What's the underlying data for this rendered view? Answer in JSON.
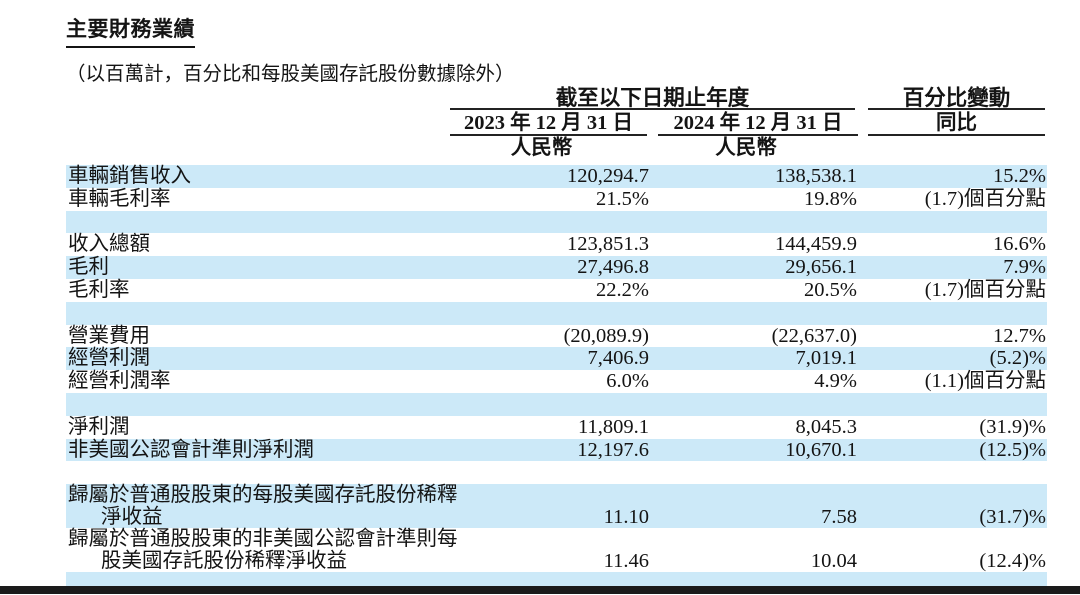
{
  "page": {
    "title": "主要財務業績",
    "subtitle": "（以百萬計，百分比和每股美國存託股份數據除外）"
  },
  "table": {
    "header": {
      "period_group": "截至以下日期止年度",
      "pct_group": "百分比變動",
      "date_2023": "2023 年 12 月 31 日",
      "date_2024": "2024 年 12 月 31 日",
      "yoy_label": "同比",
      "currency_left": "人民幣",
      "currency_right": "人民幣"
    },
    "rows": [
      {
        "label": "車輛銷售收入",
        "v2023": "120,294.7",
        "v2024": "138,538.1",
        "yoy": "15.2%",
        "shade": true
      },
      {
        "label": "車輛毛利率",
        "v2023": "21.5%",
        "v2024": "19.8%",
        "yoy": "(1.7)個百分點",
        "shade": false
      },
      {
        "label": "",
        "v2023": "",
        "v2024": "",
        "yoy": "",
        "shade": true,
        "spacer": true
      },
      {
        "label": "收入總額",
        "v2023": "123,851.3",
        "v2024": "144,459.9",
        "yoy": "16.6%",
        "shade": false
      },
      {
        "label": "毛利",
        "v2023": "27,496.8",
        "v2024": "29,656.1",
        "yoy": "7.9%",
        "shade": true
      },
      {
        "label": "毛利率",
        "v2023": "22.2%",
        "v2024": "20.5%",
        "yoy": "(1.7)個百分點",
        "shade": false
      },
      {
        "label": "",
        "v2023": "",
        "v2024": "",
        "yoy": "",
        "shade": true,
        "spacer": true
      },
      {
        "label": "營業費用",
        "v2023": "(20,089.9)",
        "v2024": "(22,637.0)",
        "yoy": "12.7%",
        "shade": false
      },
      {
        "label": "經營利潤",
        "v2023": "7,406.9",
        "v2024": "7,019.1",
        "yoy": "(5.2)%",
        "shade": true
      },
      {
        "label": "經營利潤率",
        "v2023": "6.0%",
        "v2024": "4.9%",
        "yoy": "(1.1)個百分點",
        "shade": false
      },
      {
        "label": "",
        "v2023": "",
        "v2024": "",
        "yoy": "",
        "shade": true,
        "spacer": true
      },
      {
        "label": "淨利潤",
        "v2023": "11,809.1",
        "v2024": "8,045.3",
        "yoy": "(31.9)%",
        "shade": false
      },
      {
        "label": "非美國公認會計準則淨利潤",
        "v2023": "12,197.6",
        "v2024": "10,670.1",
        "yoy": "(12.5)%",
        "shade": true
      },
      {
        "label": "",
        "v2023": "",
        "v2024": "",
        "yoy": "",
        "shade": false,
        "spacer": true
      },
      {
        "label": "歸屬於普通股股東的每股美國存託股份稀釋\n淨收益",
        "v2023": "11.10",
        "v2024": "7.58",
        "yoy": "(31.7)%",
        "shade": true
      },
      {
        "label": "歸屬於普通股股東的非美國公認會計準則每\n股美國存託股份稀釋淨收益",
        "v2023": "11.46",
        "v2024": "10.04",
        "yoy": "(12.4)%",
        "shade": false
      },
      {
        "label": "",
        "v2023": "",
        "v2024": "",
        "yoy": "",
        "shade": true,
        "spacer": true,
        "end": true
      }
    ]
  },
  "colors": {
    "stripe": "#cce9f8",
    "bottom_bar": "#1b1b1b",
    "rule": "#232323"
  }
}
